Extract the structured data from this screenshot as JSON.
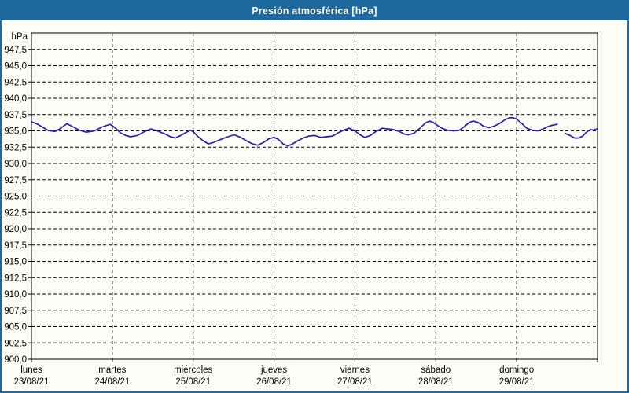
{
  "window": {
    "title": "Presión atmosférica [hPa]"
  },
  "colors": {
    "titlebar_bg": "#1d689c",
    "titlebar_text": "#ffffff",
    "window_border": "#1d689c",
    "content_bg": "#fcfdf7",
    "grid_color": "#000000",
    "axis_color": "#000000",
    "line_color": "#2222b2"
  },
  "chart_data": {
    "type": "line",
    "title": "Presión atmosférica [hPa]",
    "ylabel": "hPa",
    "ylim": [
      900,
      950
    ],
    "y_tick_step": 2.5,
    "y_tick_labels": [
      "900,0",
      "902,5",
      "905,0",
      "907,5",
      "910,0",
      "912,5",
      "915,0",
      "917,5",
      "920,0",
      "922,5",
      "925,0",
      "927,5",
      "930,0",
      "932,5",
      "935,0",
      "937,5",
      "940,0",
      "942,5",
      "945,0",
      "947,5"
    ],
    "decimal_separator": ",",
    "grid": "dashed",
    "legend": "none",
    "line_color": "#2222b2",
    "x_unit": "hours",
    "xlim": [
      0,
      168
    ],
    "hours_per_day": 24,
    "categories": [
      {
        "day": "lunes",
        "date": "23/08/21"
      },
      {
        "day": "martes",
        "date": "24/08/21"
      },
      {
        "day": "miércoles",
        "date": "25/08/21"
      },
      {
        "day": "jueves",
        "date": "26/08/21"
      },
      {
        "day": "viernes",
        "date": "27/08/21"
      },
      {
        "day": "sábado",
        "date": "28/08/21"
      },
      {
        "day": "domingo",
        "date": "29/08/21"
      }
    ],
    "series": [
      {
        "name": "Presión atmosférica",
        "points": [
          [
            0,
            936.4
          ],
          [
            1.9,
            936.0
          ],
          [
            3.5,
            935.5
          ],
          [
            4.9,
            935.1
          ],
          [
            5.8,
            935.0
          ],
          [
            7,
            934.9
          ],
          [
            8.4,
            935.3
          ],
          [
            10.5,
            936.1
          ],
          [
            12.8,
            935.5
          ],
          [
            14.2,
            935.1
          ],
          [
            16.3,
            934.8
          ],
          [
            18.7,
            935.0
          ],
          [
            21,
            935.6
          ],
          [
            23.3,
            936.0
          ],
          [
            24,
            935.8
          ],
          [
            25.2,
            935.3
          ],
          [
            26.4,
            934.7
          ],
          [
            28,
            934.3
          ],
          [
            29.4,
            934.1
          ],
          [
            31.5,
            934.3
          ],
          [
            33.6,
            934.9
          ],
          [
            35.5,
            935.3
          ],
          [
            37.3,
            935.0
          ],
          [
            39.7,
            934.5
          ],
          [
            41.3,
            934.1
          ],
          [
            42.7,
            933.9
          ],
          [
            44.3,
            934.3
          ],
          [
            46,
            934.8
          ],
          [
            47.1,
            935.1
          ],
          [
            48,
            934.9
          ],
          [
            49.2,
            934.2
          ],
          [
            50.9,
            933.5
          ],
          [
            52.5,
            933.0
          ],
          [
            53.9,
            933.2
          ],
          [
            55.8,
            933.6
          ],
          [
            58.3,
            934.1
          ],
          [
            60.2,
            934.4
          ],
          [
            62.1,
            934.0
          ],
          [
            63.7,
            933.5
          ],
          [
            65.6,
            933.0
          ],
          [
            67.2,
            932.8
          ],
          [
            68.8,
            933.2
          ],
          [
            70.5,
            933.8
          ],
          [
            72,
            934.0
          ],
          [
            73.3,
            933.7
          ],
          [
            74.7,
            933.0
          ],
          [
            76.1,
            932.7
          ],
          [
            77.5,
            933.0
          ],
          [
            79.1,
            933.5
          ],
          [
            80.7,
            933.9
          ],
          [
            82.4,
            934.2
          ],
          [
            84,
            934.3
          ],
          [
            85.9,
            934.0
          ],
          [
            87.5,
            934.1
          ],
          [
            89.4,
            934.2
          ],
          [
            91,
            934.7
          ],
          [
            92.6,
            935.1
          ],
          [
            94.3,
            935.4
          ],
          [
            96,
            935.0
          ],
          [
            97.5,
            934.4
          ],
          [
            98.9,
            934.0
          ],
          [
            100.6,
            934.3
          ],
          [
            102.2,
            934.9
          ],
          [
            104.1,
            935.4
          ],
          [
            105.7,
            935.3
          ],
          [
            107.3,
            935.2
          ],
          [
            109.2,
            934.9
          ],
          [
            110.6,
            934.5
          ],
          [
            111.8,
            934.4
          ],
          [
            113.4,
            934.6
          ],
          [
            115.3,
            935.4
          ],
          [
            116.9,
            936.2
          ],
          [
            118.1,
            936.5
          ],
          [
            119.2,
            936.3
          ],
          [
            120,
            936.0
          ],
          [
            121.8,
            935.4
          ],
          [
            123.4,
            935.1
          ],
          [
            125.3,
            935.0
          ],
          [
            127,
            935.1
          ],
          [
            128.6,
            935.7
          ],
          [
            130,
            936.3
          ],
          [
            131.1,
            936.5
          ],
          [
            132.5,
            936.3
          ],
          [
            134.2,
            935.7
          ],
          [
            135.8,
            935.5
          ],
          [
            137.2,
            935.7
          ],
          [
            138.8,
            936.1
          ],
          [
            140.5,
            936.7
          ],
          [
            141.9,
            937.0
          ],
          [
            143,
            937.0
          ],
          [
            144,
            936.8
          ],
          [
            145.6,
            936.1
          ],
          [
            147,
            935.4
          ],
          [
            148.6,
            935.1
          ],
          [
            150.3,
            935.0
          ],
          [
            151.9,
            935.3
          ],
          [
            153.5,
            935.7
          ],
          [
            154.9,
            935.9
          ],
          [
            156,
            936.0
          ],
          null,
          [
            158.4,
            934.6
          ],
          [
            159.8,
            934.3
          ],
          [
            161.2,
            933.9
          ],
          [
            162.4,
            933.9
          ],
          [
            163.6,
            934.2
          ],
          [
            164.7,
            934.8
          ],
          [
            165.9,
            935.2
          ],
          [
            166.8,
            935.1
          ],
          [
            167.8,
            935.3
          ]
        ]
      }
    ]
  }
}
